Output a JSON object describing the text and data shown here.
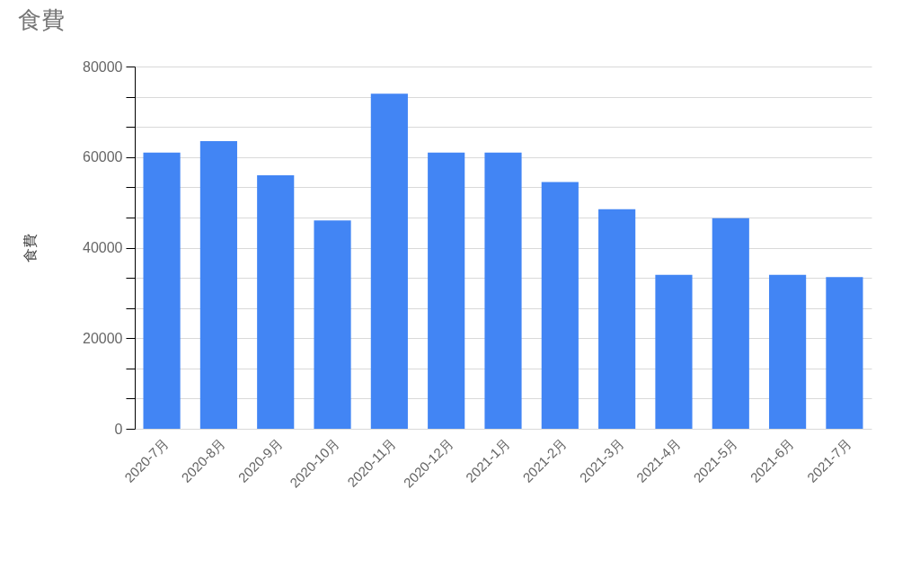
{
  "chart_data": {
    "type": "bar",
    "title": "食費",
    "ylabel": "食費",
    "categories": [
      "2020-7月",
      "2020-8月",
      "2020-9月",
      "2020-10月",
      "2020-11月",
      "2020-12月",
      "2021-1月",
      "2021-2月",
      "2021-3月",
      "2021-4月",
      "2021-5月",
      "2021-6月",
      "2021-7月"
    ],
    "values": [
      61000,
      63500,
      56000,
      46000,
      74000,
      61000,
      61000,
      54500,
      48500,
      34000,
      46500,
      34000,
      33500
    ],
    "color": "#4285f4",
    "ylim": [
      0,
      80000
    ],
    "yticks": [
      0,
      {
        "value": 6667,
        "label": null
      },
      {
        "value": 13333,
        "label": null
      },
      20000,
      {
        "value": 26667,
        "label": null
      },
      {
        "value": 33333,
        "label": null
      },
      40000,
      {
        "value": 46667,
        "label": null
      },
      {
        "value": 53333,
        "label": null
      },
      60000,
      {
        "value": 66667,
        "label": null
      },
      {
        "value": 73333,
        "label": null
      },
      80000
    ],
    "grid": "y"
  }
}
